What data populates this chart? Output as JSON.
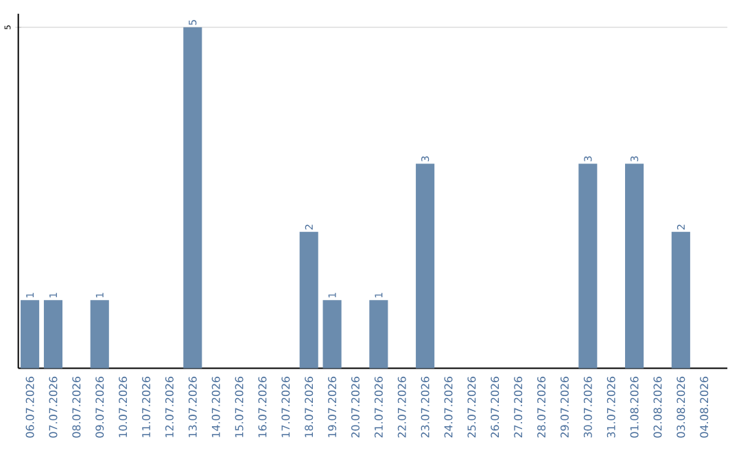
{
  "chart_data": {
    "type": "bar",
    "categories": [
      "06.07.2026",
      "07.07.2026",
      "08.07.2026",
      "09.07.2026",
      "10.07.2026",
      "11.07.2026",
      "12.07.2026",
      "13.07.2026",
      "14.07.2026",
      "15.07.2026",
      "16.07.2026",
      "17.07.2026",
      "18.07.2026",
      "19.07.2026",
      "20.07.2026",
      "21.07.2026",
      "22.07.2026",
      "23.07.2026",
      "24.07.2026",
      "25.07.2026",
      "26.07.2026",
      "27.07.2026",
      "28.07.2026",
      "29.07.2026",
      "30.07.2026",
      "31.07.2026",
      "01.08.2026",
      "02.08.2026",
      "03.08.2026",
      "04.08.2026"
    ],
    "values": [
      1,
      1,
      0,
      1,
      0,
      0,
      0,
      5,
      0,
      0,
      0,
      0,
      2,
      1,
      0,
      1,
      0,
      3,
      0,
      0,
      0,
      0,
      0,
      0,
      3,
      0,
      3,
      0,
      2,
      0
    ],
    "value_labels": [
      "1",
      "1",
      null,
      "1",
      null,
      null,
      null,
      "5",
      null,
      null,
      null,
      null,
      "2",
      "1",
      null,
      "1",
      null,
      "3",
      null,
      null,
      null,
      null,
      null,
      null,
      "3",
      null,
      "3",
      null,
      "2",
      null
    ],
    "color": "#6b8cae",
    "ylim": [
      0,
      5.2
    ],
    "yticks": [
      5
    ],
    "grid": "y"
  }
}
